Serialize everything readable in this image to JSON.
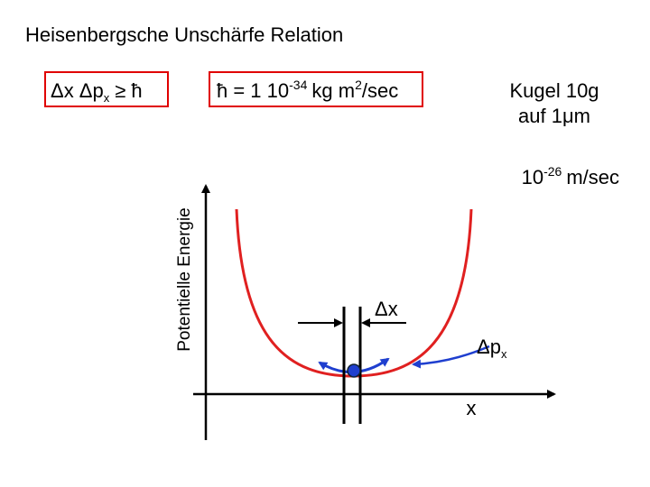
{
  "title": "Heisenbergsche Unschärfe Relation",
  "relation": {
    "main": "Δx Δp",
    "sub": "x",
    "rest": "≥ ħ"
  },
  "hbar": {
    "main": "ħ = 1 10",
    "exp": "-34",
    "unit": "kg m",
    "unit_exp": "2",
    "tail": "/sec"
  },
  "ball": {
    "line1": "Kugel 10g",
    "line2": "auf 1μm"
  },
  "velocity": {
    "base": "10",
    "exp": "-26",
    "unit": "m/sec"
  },
  "y_axis_label": "Potentielle Energie",
  "x_axis_label": "x",
  "delta_x": "Δx",
  "delta_p": {
    "main": "Δp",
    "sub": "x"
  }
}
